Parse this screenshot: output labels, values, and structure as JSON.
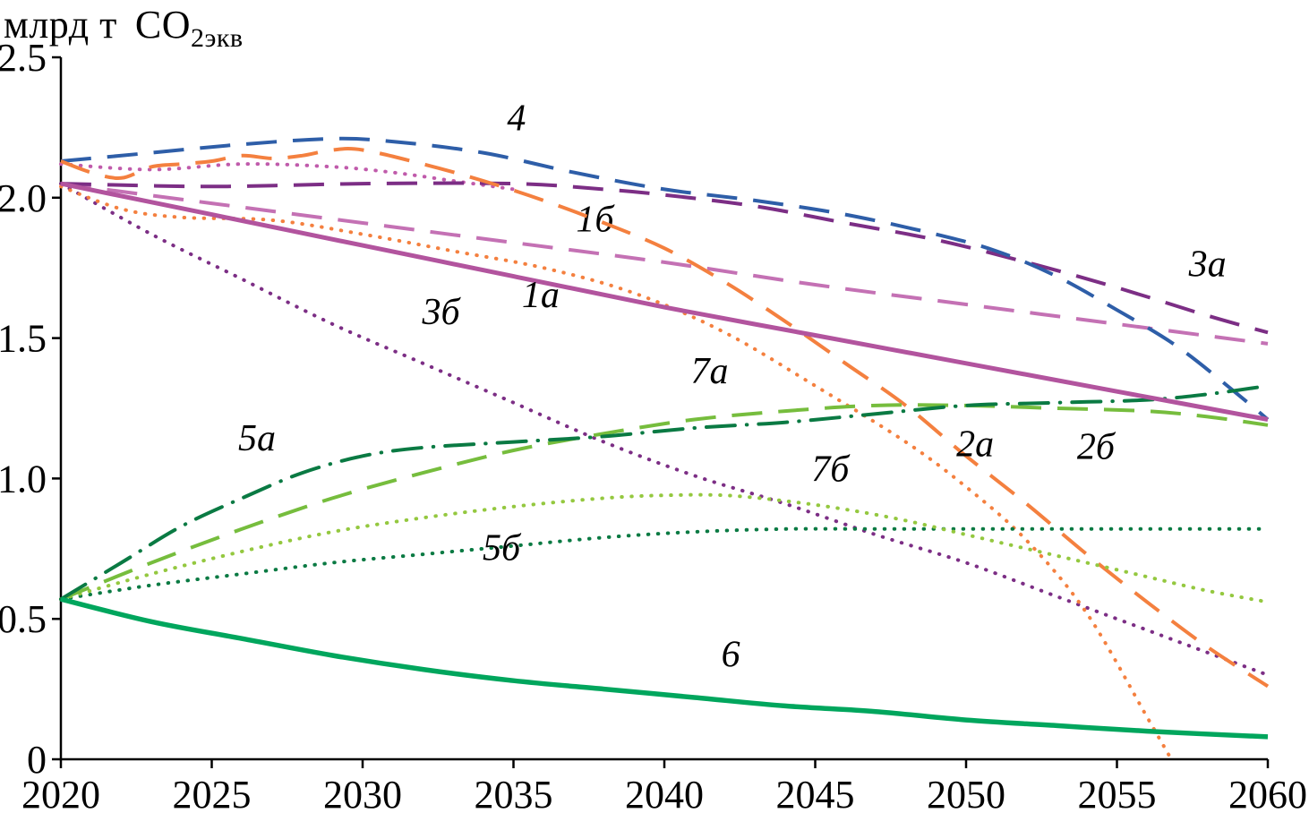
{
  "chart_data": {
    "type": "line",
    "title": "",
    "xlabel": "",
    "ylabel": "млрд т CO2экв",
    "ylabel_prefix": "млрд т",
    "ylabel_co": "CO",
    "ylabel_sub": "2экв",
    "xlim": [
      2020,
      2060
    ],
    "ylim": [
      0,
      2.5
    ],
    "x_ticks": [
      2020,
      2025,
      2030,
      2035,
      2040,
      2045,
      2050,
      2055,
      2060
    ],
    "y_ticks": [
      0,
      0.5,
      1.0,
      1.5,
      2.0,
      2.5
    ],
    "y_tick_labels": [
      "0",
      "0.5",
      "1.0",
      "1.5",
      "2.0",
      "2.5"
    ],
    "grid": false,
    "legend": "inline-labels",
    "series": [
      {
        "id": "aux-dotted",
        "label": "",
        "color": "#c05bab",
        "dash": "dot",
        "width": 4,
        "label_pos": [
          0,
          0
        ],
        "points": [
          [
            2020,
            2.12
          ],
          [
            2023,
            2.1
          ],
          [
            2026,
            2.12
          ],
          [
            2029,
            2.11
          ],
          [
            2031,
            2.09
          ],
          [
            2033,
            2.06
          ],
          [
            2035,
            2.03
          ]
        ]
      },
      {
        "id": "1b",
        "label": "1б",
        "color": "#c471b4",
        "dash": "long",
        "width": 4,
        "label_pos": [
          2037.7,
          1.88
        ],
        "points": [
          [
            2020,
            2.05
          ],
          [
            2025,
            1.98
          ],
          [
            2030,
            1.91
          ],
          [
            2035,
            1.84
          ],
          [
            2040,
            1.77
          ],
          [
            2045,
            1.69
          ],
          [
            2050,
            1.62
          ],
          [
            2055,
            1.55
          ],
          [
            2060,
            1.48
          ]
        ]
      },
      {
        "id": "3b",
        "label": "3б",
        "color": "#7c2e85",
        "dash": "dot",
        "width": 4,
        "label_pos": [
          2032.6,
          1.55
        ],
        "points": [
          [
            2020,
            2.05
          ],
          [
            2023,
            1.87
          ],
          [
            2026,
            1.71
          ],
          [
            2029,
            1.55
          ],
          [
            2032,
            1.41
          ],
          [
            2035,
            1.27
          ],
          [
            2038,
            1.13
          ],
          [
            2041,
            1.01
          ],
          [
            2044,
            0.91
          ],
          [
            2047,
            0.8
          ],
          [
            2050,
            0.7
          ],
          [
            2053,
            0.58
          ],
          [
            2056,
            0.46
          ],
          [
            2058,
            0.38
          ],
          [
            2060,
            0.3
          ]
        ]
      },
      {
        "id": "3a",
        "label": "3а",
        "color": "#7c2e85",
        "dash": "long",
        "width": 4,
        "label_pos": [
          2058.0,
          1.72
        ],
        "points": [
          [
            2020,
            2.05
          ],
          [
            2025,
            2.04
          ],
          [
            2030,
            2.05
          ],
          [
            2035,
            2.05
          ],
          [
            2038,
            2.03
          ],
          [
            2040,
            2.01
          ],
          [
            2043,
            1.97
          ],
          [
            2046,
            1.91
          ],
          [
            2049,
            1.85
          ],
          [
            2052,
            1.77
          ],
          [
            2055,
            1.68
          ],
          [
            2058,
            1.58
          ],
          [
            2060,
            1.52
          ]
        ]
      },
      {
        "id": "4",
        "label": "4",
        "color": "#2e5ea8",
        "dash": "long",
        "width": 4,
        "label_pos": [
          2035.1,
          2.24
        ],
        "points": [
          [
            2020,
            2.13
          ],
          [
            2023,
            2.16
          ],
          [
            2026,
            2.19
          ],
          [
            2029,
            2.21
          ],
          [
            2031,
            2.2
          ],
          [
            2034,
            2.16
          ],
          [
            2037,
            2.09
          ],
          [
            2040,
            2.03
          ],
          [
            2043,
            1.99
          ],
          [
            2046,
            1.94
          ],
          [
            2049,
            1.87
          ],
          [
            2051,
            1.81
          ],
          [
            2053,
            1.72
          ],
          [
            2055,
            1.6
          ],
          [
            2057,
            1.47
          ],
          [
            2059,
            1.3
          ],
          [
            2060,
            1.21
          ]
        ]
      },
      {
        "id": "2b",
        "label": "2б",
        "color": "#f4803f",
        "dash": "long",
        "width": 4,
        "label_pos": [
          2054.3,
          1.07
        ],
        "points": [
          [
            2020,
            2.13
          ],
          [
            2021,
            2.09
          ],
          [
            2022,
            2.07
          ],
          [
            2023,
            2.11
          ],
          [
            2024,
            2.12
          ],
          [
            2025,
            2.13
          ],
          [
            2026,
            2.15
          ],
          [
            2027,
            2.14
          ],
          [
            2028,
            2.15
          ],
          [
            2029,
            2.17
          ],
          [
            2030,
            2.17
          ],
          [
            2032,
            2.12
          ],
          [
            2034,
            2.06
          ],
          [
            2036,
            1.99
          ],
          [
            2038,
            1.91
          ],
          [
            2040,
            1.82
          ],
          [
            2042,
            1.7
          ],
          [
            2044,
            1.56
          ],
          [
            2046,
            1.41
          ],
          [
            2048,
            1.26
          ],
          [
            2050,
            1.08
          ],
          [
            2052,
            0.91
          ],
          [
            2054,
            0.73
          ],
          [
            2056,
            0.56
          ],
          [
            2058,
            0.4
          ],
          [
            2060,
            0.26
          ]
        ]
      },
      {
        "id": "2a",
        "label": "2а",
        "color": "#f4803f",
        "dash": "dot",
        "width": 4,
        "label_pos": [
          2050.3,
          1.08
        ],
        "points": [
          [
            2020,
            2.04
          ],
          [
            2022,
            1.96
          ],
          [
            2024,
            1.93
          ],
          [
            2027,
            1.92
          ],
          [
            2030,
            1.87
          ],
          [
            2033,
            1.81
          ],
          [
            2036,
            1.75
          ],
          [
            2039,
            1.66
          ],
          [
            2042,
            1.52
          ],
          [
            2045,
            1.33
          ],
          [
            2048,
            1.13
          ],
          [
            2050,
            0.97
          ],
          [
            2052,
            0.78
          ],
          [
            2054,
            0.52
          ],
          [
            2056,
            0.15
          ],
          [
            2056.8,
            0
          ]
        ]
      },
      {
        "id": "5b",
        "label": "5б",
        "color": "#0a7a43",
        "dash": "dot",
        "width": 4,
        "label_pos": [
          2034.6,
          0.71
        ],
        "points": [
          [
            2020,
            0.57
          ],
          [
            2023,
            0.62
          ],
          [
            2026,
            0.66
          ],
          [
            2029,
            0.7
          ],
          [
            2032,
            0.73
          ],
          [
            2035,
            0.76
          ],
          [
            2038,
            0.79
          ],
          [
            2041,
            0.81
          ],
          [
            2044,
            0.82
          ],
          [
            2047,
            0.82
          ],
          [
            2050,
            0.82
          ],
          [
            2055,
            0.82
          ],
          [
            2060,
            0.82
          ]
        ]
      },
      {
        "id": "7b",
        "label": "7б",
        "color": "#94c83f",
        "dash": "dot",
        "width": 4,
        "label_pos": [
          2045.5,
          0.99
        ],
        "points": [
          [
            2020,
            0.57
          ],
          [
            2023,
            0.66
          ],
          [
            2026,
            0.74
          ],
          [
            2029,
            0.81
          ],
          [
            2032,
            0.86
          ],
          [
            2035,
            0.9
          ],
          [
            2038,
            0.93
          ],
          [
            2040,
            0.94
          ],
          [
            2042,
            0.94
          ],
          [
            2044,
            0.92
          ],
          [
            2046,
            0.89
          ],
          [
            2048,
            0.85
          ],
          [
            2050,
            0.8
          ],
          [
            2052,
            0.75
          ],
          [
            2054,
            0.7
          ],
          [
            2056,
            0.65
          ],
          [
            2058,
            0.6
          ],
          [
            2060,
            0.56
          ]
        ]
      },
      {
        "id": "7a",
        "label": "7а",
        "color": "#76bd3d",
        "dash": "long",
        "width": 4,
        "label_pos": [
          2041.5,
          1.34
        ],
        "points": [
          [
            2020,
            0.57
          ],
          [
            2023,
            0.7
          ],
          [
            2026,
            0.82
          ],
          [
            2029,
            0.93
          ],
          [
            2032,
            1.02
          ],
          [
            2035,
            1.1
          ],
          [
            2038,
            1.16
          ],
          [
            2041,
            1.21
          ],
          [
            2044,
            1.24
          ],
          [
            2047,
            1.26
          ],
          [
            2050,
            1.26
          ],
          [
            2053,
            1.25
          ],
          [
            2056,
            1.24
          ],
          [
            2058,
            1.22
          ],
          [
            2060,
            1.19
          ]
        ]
      },
      {
        "id": "5a",
        "label": "5а",
        "color": "#0a7a43",
        "dash": "dashdot",
        "width": 4,
        "label_pos": [
          2026.5,
          1.1
        ],
        "points": [
          [
            2020,
            0.57
          ],
          [
            2022,
            0.7
          ],
          [
            2024,
            0.83
          ],
          [
            2026,
            0.93
          ],
          [
            2028,
            1.02
          ],
          [
            2030,
            1.08
          ],
          [
            2032,
            1.11
          ],
          [
            2035,
            1.13
          ],
          [
            2038,
            1.15
          ],
          [
            2041,
            1.18
          ],
          [
            2044,
            1.2
          ],
          [
            2047,
            1.23
          ],
          [
            2050,
            1.26
          ],
          [
            2053,
            1.27
          ],
          [
            2056,
            1.28
          ],
          [
            2058,
            1.3
          ],
          [
            2060,
            1.33
          ]
        ]
      },
      {
        "id": "6",
        "label": "6",
        "color": "#00a65d",
        "dash": "solid",
        "width": 5.5,
        "label_pos": [
          2042.2,
          0.33
        ],
        "points": [
          [
            2020,
            0.57
          ],
          [
            2023,
            0.49
          ],
          [
            2026,
            0.43
          ],
          [
            2029,
            0.37
          ],
          [
            2032,
            0.32
          ],
          [
            2035,
            0.28
          ],
          [
            2038,
            0.25
          ],
          [
            2041,
            0.22
          ],
          [
            2044,
            0.19
          ],
          [
            2047,
            0.17
          ],
          [
            2050,
            0.14
          ],
          [
            2053,
            0.12
          ],
          [
            2056,
            0.1
          ],
          [
            2060,
            0.08
          ]
        ]
      },
      {
        "id": "1a",
        "label": "1а",
        "color": "#b2549e",
        "dash": "solid",
        "width": 5,
        "label_pos": [
          2035.9,
          1.61
        ],
        "points": [
          [
            2020,
            2.05
          ],
          [
            2025,
            1.94
          ],
          [
            2030,
            1.83
          ],
          [
            2035,
            1.72
          ],
          [
            2040,
            1.61
          ],
          [
            2045,
            1.51
          ],
          [
            2050,
            1.41
          ],
          [
            2055,
            1.31
          ],
          [
            2060,
            1.21
          ]
        ]
      }
    ]
  }
}
